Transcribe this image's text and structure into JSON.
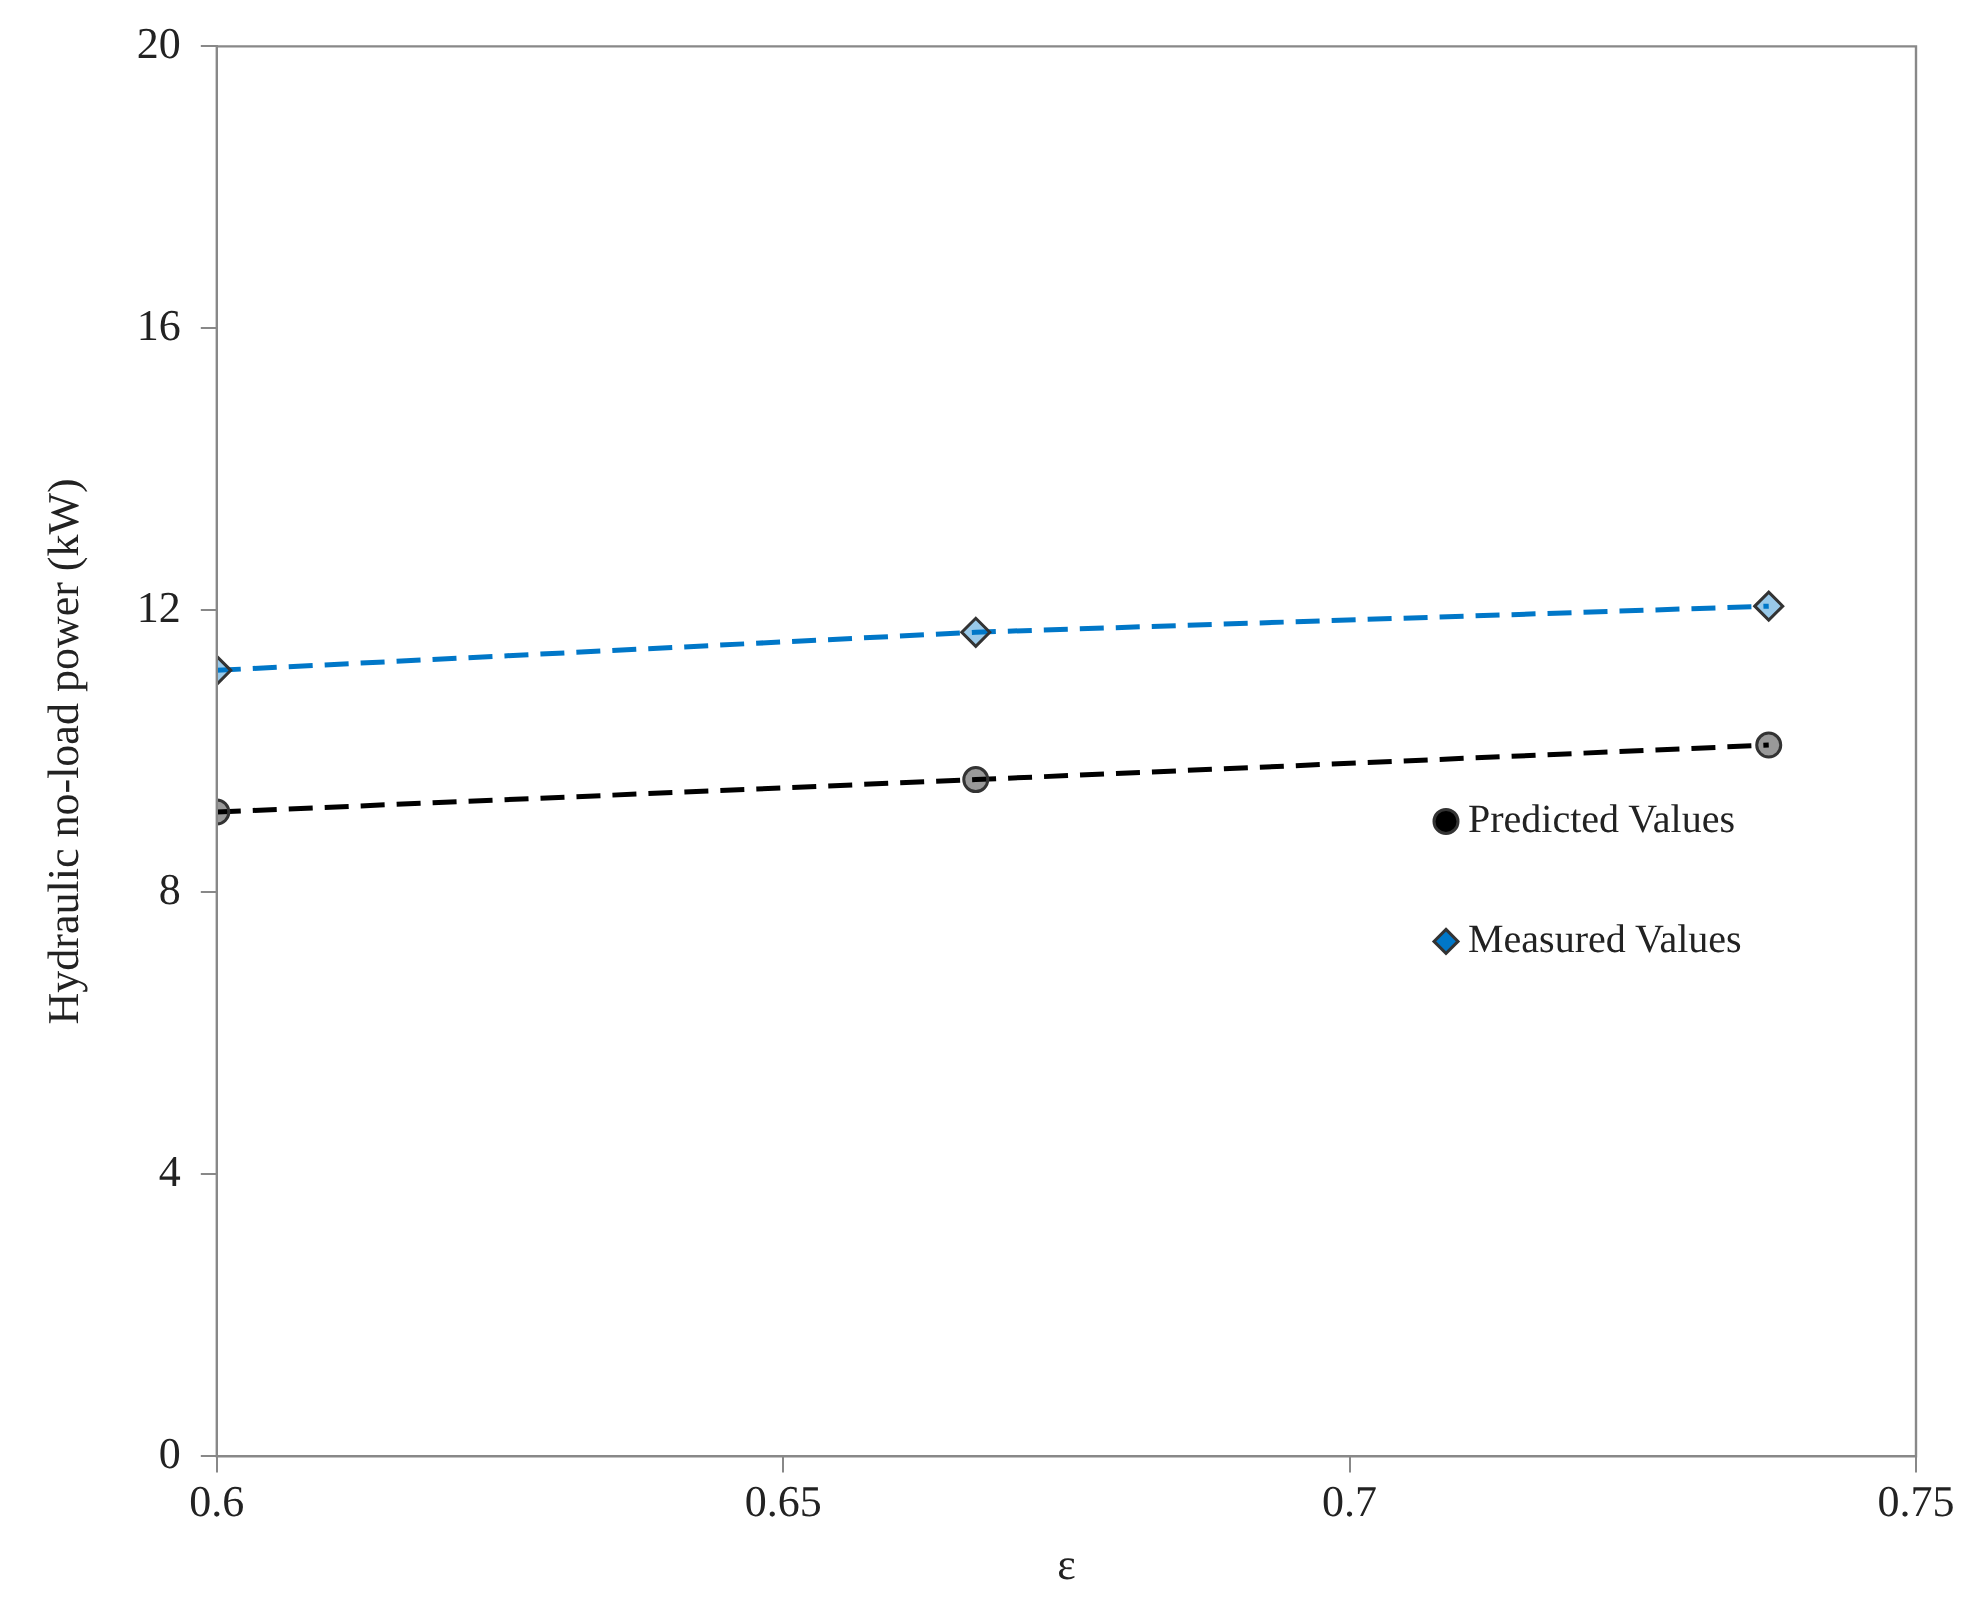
{
  "chart_data": {
    "type": "line",
    "xlabel": "ε",
    "ylabel": "Hydraulic no-load power (kW)",
    "xlim": [
      0.6,
      0.75
    ],
    "xticks": [
      0.6,
      0.65,
      0.7,
      0.75
    ],
    "ylim": [
      0,
      20
    ],
    "yticks": [
      0,
      4,
      8,
      12,
      16,
      20
    ],
    "grid": false,
    "legend": "right",
    "line_style": "dashed",
    "series": [
      {
        "name": "Predicted Values",
        "color": "#000000",
        "marker": "circle",
        "x": [
          0.6,
          0.667,
          0.737
        ],
        "values": [
          9.14,
          9.6,
          10.09
        ]
      },
      {
        "name": "Measured Values",
        "color": "#0077c8",
        "marker": "diamond",
        "x": [
          0.6,
          0.667,
          0.737
        ],
        "values": [
          11.15,
          11.69,
          12.06
        ]
      }
    ]
  }
}
